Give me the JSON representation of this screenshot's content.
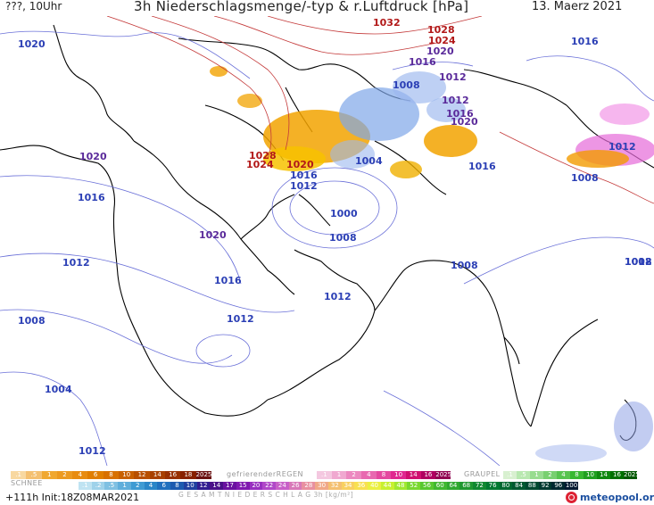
{
  "header": {
    "left": "???, 10Uhr",
    "title": "3h Niederschlagsmenge/-typ & r.Luftdruck [hPa]",
    "date": "13. Maerz 2021"
  },
  "map": {
    "land_color": "#ffffff",
    "coast_color": "#000000",
    "isobar_colors": {
      "low": "#5a6ad8",
      "high": "#c23b3b"
    },
    "isobar_labels": [
      {
        "text": "1020",
        "tone": "low"
      },
      {
        "text": "1032",
        "tone": "high"
      },
      {
        "text": "1028",
        "tone": "high"
      },
      {
        "text": "1024",
        "tone": "high"
      },
      {
        "text": "1020",
        "tone": "mid"
      },
      {
        "text": "1016",
        "tone": "mid"
      },
      {
        "text": "1012",
        "tone": "mid"
      },
      {
        "text": "1008",
        "tone": "low"
      },
      {
        "text": "1012",
        "tone": "mid"
      },
      {
        "text": "1016",
        "tone": "mid"
      },
      {
        "text": "1020",
        "tone": "mid"
      },
      {
        "text": "1016",
        "tone": "low"
      },
      {
        "text": "1008",
        "tone": "low"
      },
      {
        "text": "1012",
        "tone": "low"
      },
      {
        "text": "1008",
        "tone": "low"
      },
      {
        "text": "1008",
        "tone": "low"
      },
      {
        "text": "1020",
        "tone": "mid"
      },
      {
        "text": "1028",
        "tone": "high"
      },
      {
        "text": "1024",
        "tone": "high"
      },
      {
        "text": "1020",
        "tone": "high"
      },
      {
        "text": "1016",
        "tone": "low"
      },
      {
        "text": "1012",
        "tone": "low"
      },
      {
        "text": "1004",
        "tone": "low"
      },
      {
        "text": "1016",
        "tone": "low"
      },
      {
        "text": "1000",
        "tone": "low"
      },
      {
        "text": "1008",
        "tone": "low"
      },
      {
        "text": "1020",
        "tone": "mid"
      },
      {
        "text": "1016",
        "tone": "low"
      },
      {
        "text": "1012",
        "tone": "low"
      },
      {
        "text": "1016",
        "tone": "low"
      },
      {
        "text": "1012",
        "tone": "low"
      },
      {
        "text": "1012",
        "tone": "low"
      },
      {
        "text": "1008",
        "tone": "low"
      },
      {
        "text": "1004",
        "tone": "low"
      },
      {
        "text": "1012",
        "tone": "low"
      },
      {
        "text": "1012",
        "tone": "low"
      }
    ]
  },
  "legend": {
    "snow_label": "SCHNEE",
    "snow_values": [
      ".1",
      ".5",
      "1",
      "2",
      "4",
      "6",
      "8",
      "10",
      "12",
      "14",
      "16",
      "18",
      "2025+"
    ],
    "freezing_rain_label": "gefrierenderREGEN",
    "freezing_rain_values": [
      ".1",
      "1",
      "2",
      "4",
      "8",
      "10",
      "14",
      "16",
      "2025+"
    ],
    "graupel_label": "GRAUPEL",
    "graupel_values": [
      ".1",
      ".5",
      "1",
      "2",
      "4",
      "8",
      "10",
      "14",
      "16",
      "2025+"
    ],
    "total_values": [
      ".1",
      ".2",
      ".5",
      "1",
      "2",
      "4",
      "6",
      "8",
      "10",
      "12",
      "14",
      "17",
      "15",
      "20",
      "22",
      "24",
      "26",
      "28",
      "30",
      "32",
      "34",
      "36",
      "40",
      "44",
      "48",
      "52",
      "56",
      "60",
      "64",
      "68",
      "72",
      "76",
      "80",
      "84",
      "88",
      "92",
      "96",
      "100"
    ],
    "total_label": "G E S A M T N I E D E R S C H L A G  3h  [kg/m²]",
    "init": "+111h Init:18Z08MAR2021",
    "logo_text": "meteopool.org"
  }
}
